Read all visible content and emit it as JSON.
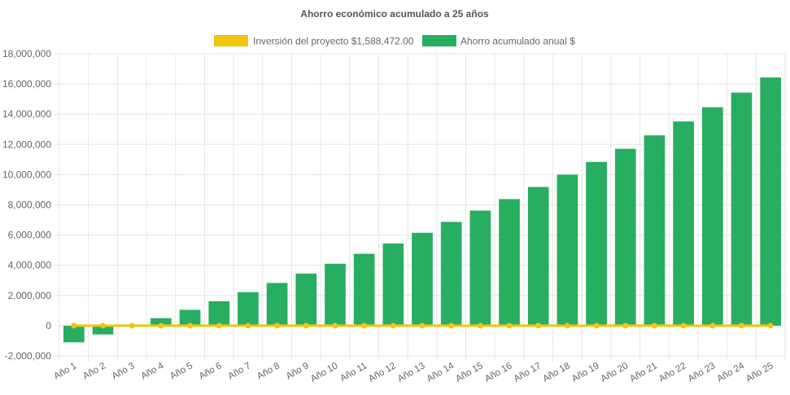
{
  "chart_data": {
    "type": "bar",
    "title": "Ahorro económico acumulado a 25 años",
    "xlabel": "",
    "ylabel": "",
    "ylim": [
      -2000000,
      18000000
    ],
    "y_ticks": [
      "-2,000,000",
      "0",
      "2,000,000",
      "4,000,000",
      "6,000,000",
      "8,000,000",
      "10,000,000",
      "12,000,000",
      "14,000,000",
      "16,000,000",
      "18,000,000"
    ],
    "y_tick_values": [
      -2000000,
      0,
      2000000,
      4000000,
      6000000,
      8000000,
      10000000,
      12000000,
      14000000,
      16000000,
      18000000
    ],
    "grid": true,
    "legend_position": "top",
    "categories": [
      "Año 1",
      "Año 2",
      "Año 3",
      "Año 4",
      "Año 5",
      "Año 6",
      "Año 7",
      "Año 8",
      "Año 9",
      "Año 10",
      "Año 11",
      "Año 12",
      "Año 13",
      "Año 14",
      "Año 15",
      "Año 16",
      "Año 17",
      "Año 18",
      "Año 19",
      "Año 20",
      "Año 21",
      "Año 22",
      "Año 23",
      "Año 24",
      "Año 25"
    ],
    "series": [
      {
        "name": "Inversión del proyecto $1,588,472.00",
        "type": "line",
        "color": "#f1c40f",
        "values": [
          0,
          0,
          0,
          0,
          0,
          0,
          0,
          0,
          0,
          0,
          0,
          0,
          0,
          0,
          0,
          0,
          0,
          0,
          0,
          0,
          0,
          0,
          0,
          0,
          0
        ]
      },
      {
        "name": "Ahorro acumulado anual $",
        "type": "bar",
        "color": "#27ae60",
        "values": [
          -1100000,
          -580000,
          -30000,
          500000,
          1050000,
          1620000,
          2220000,
          2830000,
          3450000,
          4100000,
          4760000,
          5440000,
          6150000,
          6870000,
          7620000,
          8380000,
          9180000,
          10000000,
          10840000,
          11710000,
          12600000,
          13520000,
          14460000,
          15430000,
          16430000
        ]
      }
    ]
  }
}
